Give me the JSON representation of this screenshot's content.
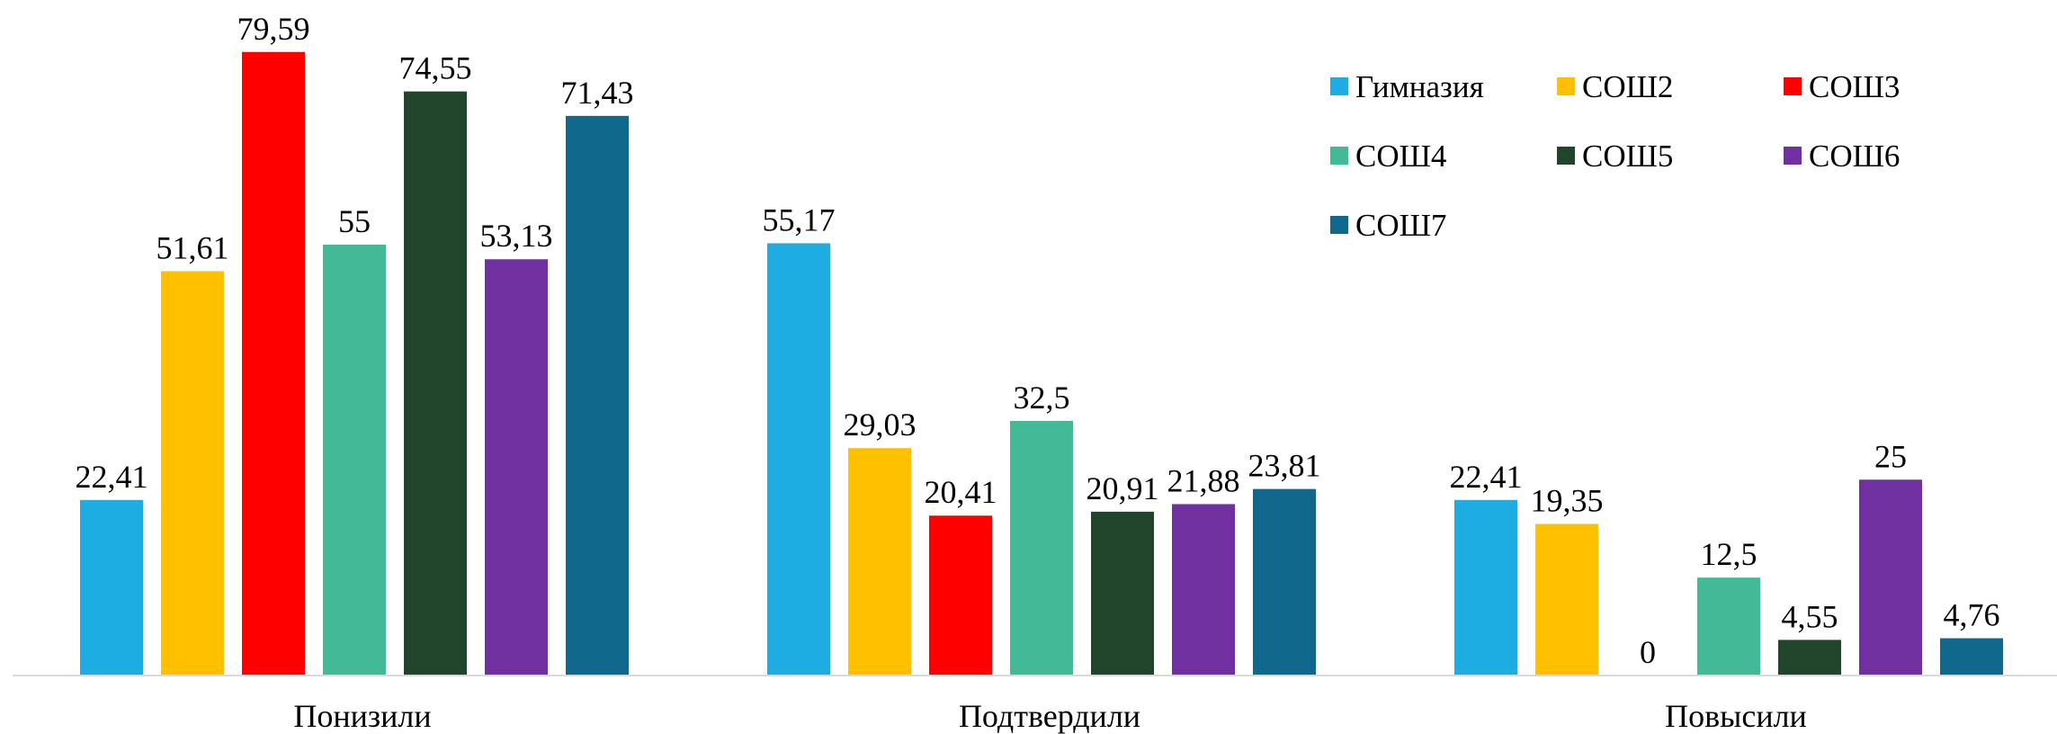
{
  "chart_data": {
    "type": "bar",
    "categories": [
      "Понизили",
      "Подтвердили",
      "Повысили"
    ],
    "series": [
      {
        "name": "Гимназия",
        "color": "#1EACE3",
        "values": [
          22.41,
          55.17,
          22.41
        ],
        "labels": [
          "22,41",
          "55,17",
          "22,41"
        ]
      },
      {
        "name": "СОШ2",
        "color": "#FFC000",
        "values": [
          51.61,
          29.03,
          19.35
        ],
        "labels": [
          "51,61",
          "29,03",
          "19,35"
        ]
      },
      {
        "name": "СОШ3",
        "color": "#FF0000",
        "values": [
          79.59,
          20.41,
          0
        ],
        "labels": [
          "79,59",
          "20,41",
          "0"
        ]
      },
      {
        "name": "СОШ4",
        "color": "#43BA97",
        "values": [
          55,
          32.5,
          12.5
        ],
        "labels": [
          "55",
          "32,5",
          "12,5"
        ]
      },
      {
        "name": "СОШ5",
        "color": "#21452A",
        "values": [
          74.55,
          20.91,
          4.55
        ],
        "labels": [
          "74,55",
          "20,91",
          "4,55"
        ]
      },
      {
        "name": "СОШ6",
        "color": "#7030A0",
        "values": [
          53.13,
          21.88,
          25
        ],
        "labels": [
          "53,13",
          "21,88",
          "25"
        ]
      },
      {
        "name": "СОШ7",
        "color": "#10698C",
        "values": [
          71.43,
          23.81,
          4.76
        ],
        "labels": [
          "71,43",
          "23,81",
          "4,76"
        ]
      }
    ],
    "ylim": [
      0,
      80
    ],
    "grid": false,
    "legend_position": "top-right",
    "axis_color": "#D9D9D9"
  }
}
